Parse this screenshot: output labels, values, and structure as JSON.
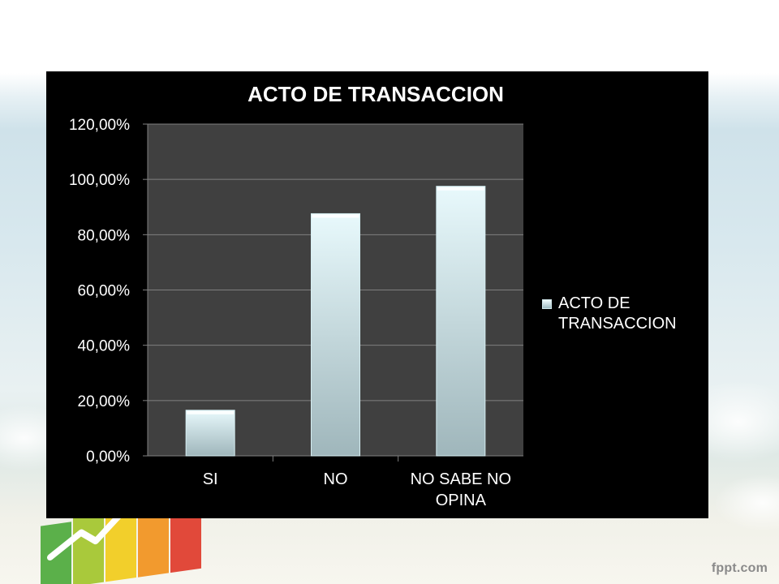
{
  "footer": {
    "brand": "fppt.com"
  },
  "chart_data": {
    "type": "bar",
    "title": "ACTO DE TRANSACCION",
    "categories": [
      "SI",
      "NO",
      "NO SABE NO OPINA"
    ],
    "series": [
      {
        "name": "ACTO DE TRANSACCION",
        "values": [
          16.5,
          87.6,
          97.5
        ]
      }
    ],
    "ylim": [
      0,
      120
    ],
    "yticks": [
      0,
      20,
      40,
      60,
      80,
      100,
      120
    ],
    "ytick_labels": [
      "0,00%",
      "20,00%",
      "40,00%",
      "60,00%",
      "80,00%",
      "100,00%",
      "120,00%"
    ],
    "xlabel": "",
    "ylabel": "",
    "grid": true,
    "legend_position": "right",
    "colors": {
      "background": "#000000",
      "plot_area": "#404040",
      "gridline": "#7f7f7f",
      "bar_top": "#e8f9fc",
      "bar_bottom": "#9fb6bb",
      "text": "#ffffff"
    }
  }
}
